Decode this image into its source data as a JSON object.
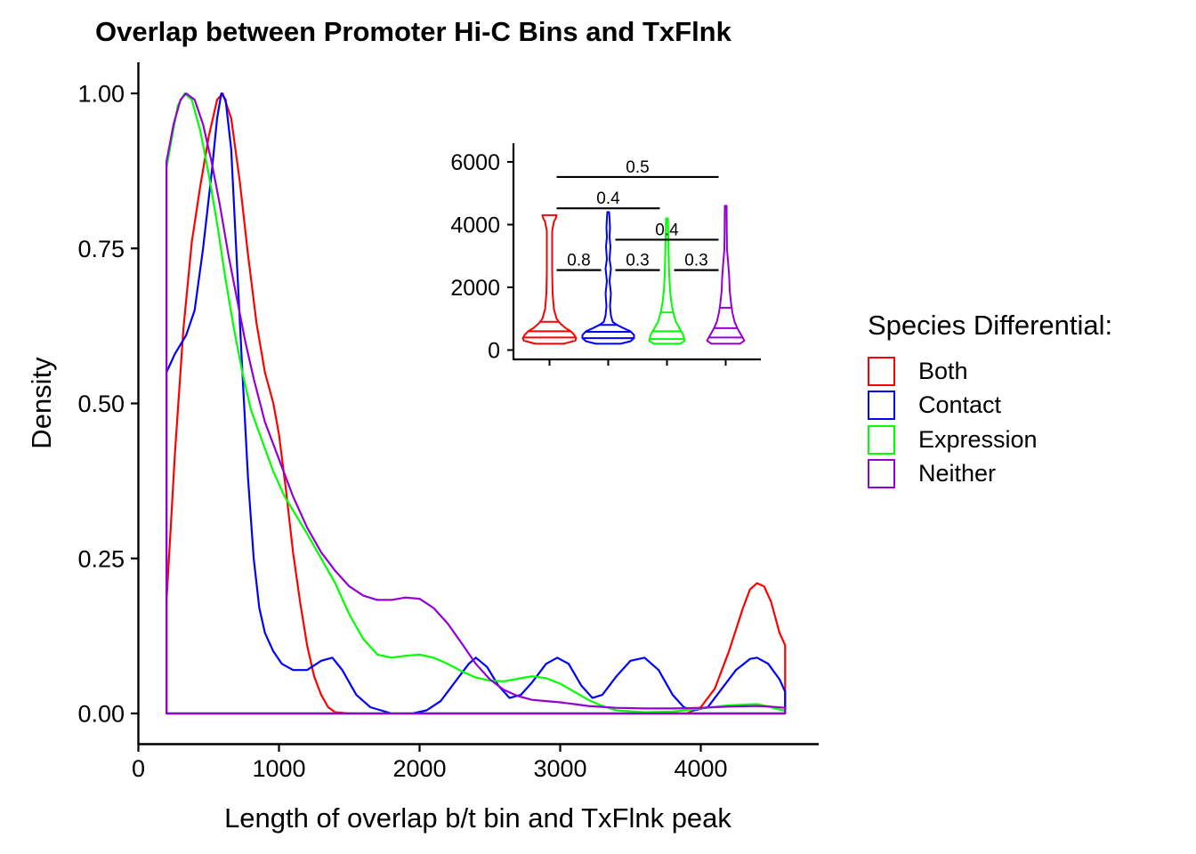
{
  "chart_data": [
    {
      "type": "line",
      "subtype": "density",
      "title": "Overlap between Promoter Hi-C Bins and TxFlnk",
      "xlabel": "Length of overlap b/t bin and TxFlnk peak",
      "ylabel": "Density",
      "xlim": [
        0,
        4800
      ],
      "ylim": [
        -0.05,
        1.05
      ],
      "x_ticks": [
        "0",
        "1000",
        "2000",
        "3000",
        "4000"
      ],
      "y_ticks": [
        "0.00",
        "0.25",
        "0.50",
        "0.75",
        "1.00"
      ],
      "grid": false,
      "legend": {
        "title": "Species Differential:",
        "placement": "right"
      },
      "series": [
        {
          "name": "Both",
          "color": "#ff0000",
          "points": [
            [
              200,
              0.18
            ],
            [
              260,
              0.42
            ],
            [
              320,
              0.62
            ],
            [
              380,
              0.76
            ],
            [
              440,
              0.85
            ],
            [
              500,
              0.93
            ],
            [
              560,
              0.99
            ],
            [
              600,
              1.0
            ],
            [
              660,
              0.96
            ],
            [
              720,
              0.86
            ],
            [
              780,
              0.74
            ],
            [
              840,
              0.63
            ],
            [
              900,
              0.55
            ],
            [
              960,
              0.5
            ],
            [
              1000,
              0.45
            ],
            [
              1050,
              0.36
            ],
            [
              1100,
              0.26
            ],
            [
              1150,
              0.18
            ],
            [
              1200,
              0.11
            ],
            [
              1250,
              0.06
            ],
            [
              1300,
              0.03
            ],
            [
              1350,
              0.01
            ],
            [
              1400,
              0.002
            ],
            [
              1500,
              0.0
            ],
            [
              3700,
              0.0
            ],
            [
              3900,
              0.0
            ],
            [
              4000,
              0.01
            ],
            [
              4100,
              0.04
            ],
            [
              4200,
              0.1
            ],
            [
              4300,
              0.17
            ],
            [
              4350,
              0.2
            ],
            [
              4400,
              0.21
            ],
            [
              4450,
              0.205
            ],
            [
              4500,
              0.18
            ],
            [
              4560,
              0.13
            ],
            [
              4600,
              0.11
            ],
            [
              4600,
              0.0
            ]
          ]
        },
        {
          "name": "Contact",
          "color": "#0000ff",
          "points": [
            [
              200,
              0.55
            ],
            [
              260,
              0.58
            ],
            [
              340,
              0.61
            ],
            [
              400,
              0.65
            ],
            [
              460,
              0.75
            ],
            [
              520,
              0.87
            ],
            [
              560,
              0.96
            ],
            [
              590,
              1.0
            ],
            [
              620,
              0.99
            ],
            [
              660,
              0.91
            ],
            [
              700,
              0.73
            ],
            [
              740,
              0.55
            ],
            [
              780,
              0.38
            ],
            [
              820,
              0.25
            ],
            [
              860,
              0.17
            ],
            [
              900,
              0.13
            ],
            [
              960,
              0.1
            ],
            [
              1020,
              0.08
            ],
            [
              1100,
              0.07
            ],
            [
              1200,
              0.07
            ],
            [
              1300,
              0.085
            ],
            [
              1380,
              0.09
            ],
            [
              1450,
              0.07
            ],
            [
              1550,
              0.03
            ],
            [
              1650,
              0.01
            ],
            [
              1800,
              0.0
            ],
            [
              1950,
              0.0
            ],
            [
              2050,
              0.005
            ],
            [
              2150,
              0.02
            ],
            [
              2250,
              0.05
            ],
            [
              2350,
              0.08
            ],
            [
              2400,
              0.09
            ],
            [
              2480,
              0.075
            ],
            [
              2560,
              0.045
            ],
            [
              2640,
              0.025
            ],
            [
              2720,
              0.03
            ],
            [
              2800,
              0.05
            ],
            [
              2900,
              0.08
            ],
            [
              2980,
              0.09
            ],
            [
              3060,
              0.08
            ],
            [
              3150,
              0.045
            ],
            [
              3230,
              0.025
            ],
            [
              3300,
              0.03
            ],
            [
              3400,
              0.06
            ],
            [
              3500,
              0.085
            ],
            [
              3600,
              0.09
            ],
            [
              3700,
              0.07
            ],
            [
              3800,
              0.03
            ],
            [
              3880,
              0.01
            ],
            [
              3950,
              0.005
            ],
            [
              4050,
              0.01
            ],
            [
              4150,
              0.04
            ],
            [
              4250,
              0.07
            ],
            [
              4350,
              0.088
            ],
            [
              4400,
              0.09
            ],
            [
              4480,
              0.08
            ],
            [
              4560,
              0.055
            ],
            [
              4600,
              0.035
            ],
            [
              4600,
              0.0
            ]
          ]
        },
        {
          "name": "Expression",
          "color": "#00ff00",
          "points": [
            [
              200,
              0.88
            ],
            [
              240,
              0.93
            ],
            [
              280,
              0.98
            ],
            [
              330,
              1.0
            ],
            [
              380,
              0.99
            ],
            [
              440,
              0.94
            ],
            [
              500,
              0.87
            ],
            [
              560,
              0.79
            ],
            [
              620,
              0.7
            ],
            [
              680,
              0.62
            ],
            [
              740,
              0.55
            ],
            [
              800,
              0.49
            ],
            [
              880,
              0.44
            ],
            [
              960,
              0.39
            ],
            [
              1040,
              0.35
            ],
            [
              1120,
              0.32
            ],
            [
              1200,
              0.29
            ],
            [
              1300,
              0.25
            ],
            [
              1400,
              0.21
            ],
            [
              1500,
              0.16
            ],
            [
              1600,
              0.12
            ],
            [
              1700,
              0.095
            ],
            [
              1800,
              0.09
            ],
            [
              1900,
              0.093
            ],
            [
              2000,
              0.095
            ],
            [
              2100,
              0.09
            ],
            [
              2200,
              0.08
            ],
            [
              2300,
              0.068
            ],
            [
              2400,
              0.058
            ],
            [
              2500,
              0.053
            ],
            [
              2600,
              0.052
            ],
            [
              2700,
              0.056
            ],
            [
              2800,
              0.06
            ],
            [
              2900,
              0.057
            ],
            [
              3000,
              0.048
            ],
            [
              3100,
              0.035
            ],
            [
              3200,
              0.022
            ],
            [
              3300,
              0.012
            ],
            [
              3400,
              0.005
            ],
            [
              3600,
              0.002
            ],
            [
              3800,
              0.003
            ],
            [
              4000,
              0.008
            ],
            [
              4200,
              0.013
            ],
            [
              4400,
              0.015
            ],
            [
              4500,
              0.01
            ],
            [
              4600,
              0.004
            ],
            [
              4600,
              0.0
            ]
          ]
        },
        {
          "name": "Neither",
          "color": "#9400d3",
          "points": [
            [
              200,
              0.89
            ],
            [
              250,
              0.95
            ],
            [
              300,
              0.99
            ],
            [
              340,
              1.0
            ],
            [
              400,
              0.99
            ],
            [
              460,
              0.95
            ],
            [
              520,
              0.89
            ],
            [
              580,
              0.82
            ],
            [
              640,
              0.74
            ],
            [
              700,
              0.67
            ],
            [
              760,
              0.6
            ],
            [
              820,
              0.54
            ],
            [
              900,
              0.47
            ],
            [
              1000,
              0.41
            ],
            [
              1100,
              0.35
            ],
            [
              1200,
              0.3
            ],
            [
              1300,
              0.26
            ],
            [
              1400,
              0.23
            ],
            [
              1500,
              0.205
            ],
            [
              1600,
              0.19
            ],
            [
              1700,
              0.183
            ],
            [
              1800,
              0.183
            ],
            [
              1900,
              0.187
            ],
            [
              2000,
              0.185
            ],
            [
              2100,
              0.17
            ],
            [
              2200,
              0.145
            ],
            [
              2300,
              0.113
            ],
            [
              2400,
              0.08
            ],
            [
              2500,
              0.055
            ],
            [
              2600,
              0.038
            ],
            [
              2700,
              0.028
            ],
            [
              2800,
              0.022
            ],
            [
              2900,
              0.02
            ],
            [
              3000,
              0.018
            ],
            [
              3100,
              0.015
            ],
            [
              3200,
              0.012
            ],
            [
              3400,
              0.009
            ],
            [
              3600,
              0.008
            ],
            [
              3800,
              0.008
            ],
            [
              4000,
              0.009
            ],
            [
              4200,
              0.011
            ],
            [
              4400,
              0.012
            ],
            [
              4500,
              0.011
            ],
            [
              4600,
              0.009
            ],
            [
              4600,
              0.0
            ]
          ]
        }
      ]
    },
    {
      "type": "violin",
      "inset": true,
      "xlabel": "",
      "ylabel": "",
      "ylim": [
        -300,
        6500
      ],
      "y_ticks": [
        "0",
        "2000",
        "4000",
        "6000"
      ],
      "x_tick_labels": [
        "",
        "",
        "",
        ""
      ],
      "grid": false,
      "groups": [
        {
          "name": "Both",
          "color": "#ff0000",
          "min": 200,
          "max": 4300,
          "quantiles": [
            400,
            600,
            900
          ]
        },
        {
          "name": "Contact",
          "color": "#0000ff",
          "min": 200,
          "max": 4400,
          "quantiles": [
            380,
            580,
            800
          ]
        },
        {
          "name": "Expression",
          "color": "#00ff00",
          "min": 200,
          "max": 4200,
          "quantiles": [
            350,
            600,
            1200
          ]
        },
        {
          "name": "Neither",
          "color": "#9400d3",
          "min": 200,
          "max": 4600,
          "quantiles": [
            400,
            700,
            1350
          ]
        }
      ],
      "comparisons": [
        {
          "groups": [
            1,
            2
          ],
          "label": "0.8",
          "y": 2550
        },
        {
          "groups": [
            2,
            3
          ],
          "label": "0.3",
          "y": 2550
        },
        {
          "groups": [
            3,
            4
          ],
          "label": "0.3",
          "y": 2550
        },
        {
          "groups": [
            2,
            4
          ],
          "label": "0.4",
          "y": 3520
        },
        {
          "groups": [
            1,
            3
          ],
          "label": "0.4",
          "y": 4520
        },
        {
          "groups": [
            1,
            4
          ],
          "label": "0.5",
          "y": 5520
        }
      ]
    }
  ]
}
